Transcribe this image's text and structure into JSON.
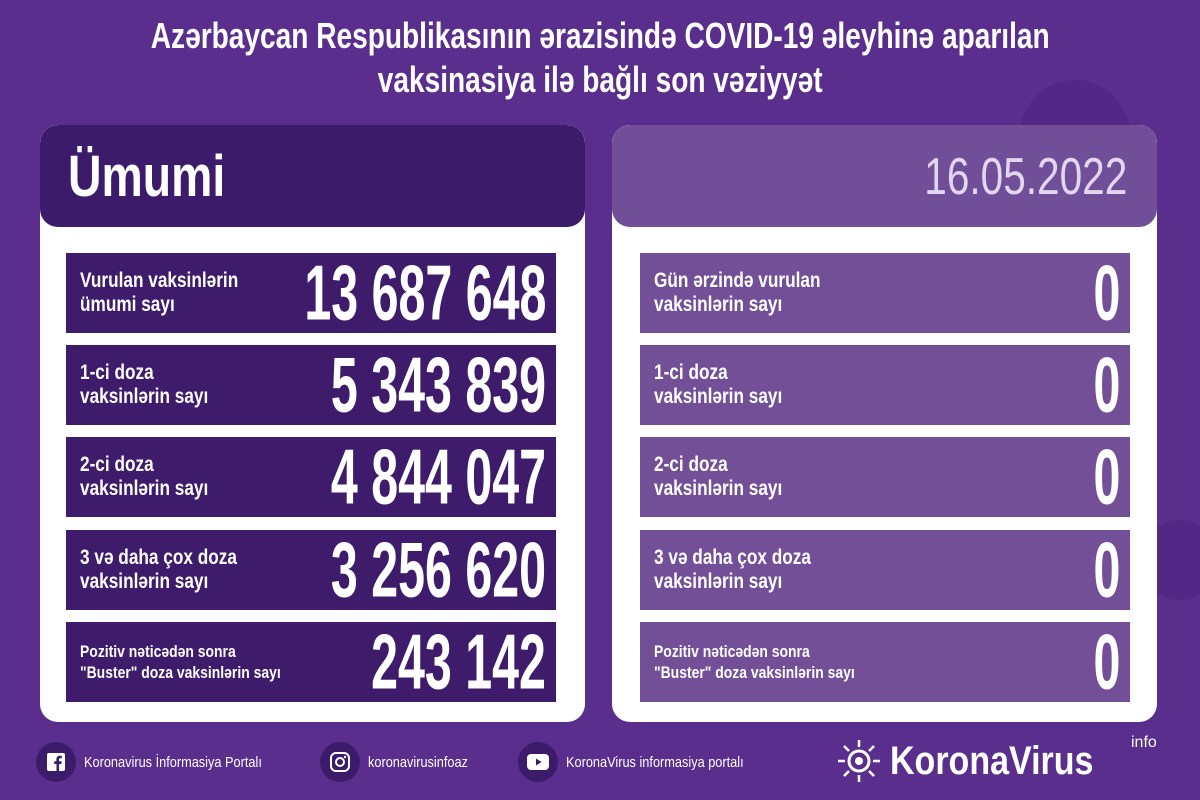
{
  "title": {
    "line1": "Azərbaycan Respublikasının ərazisində COVID-19 əleyhinə aparılan",
    "line2": "vaksinasiya ilə bağlı son vəziyyət"
  },
  "colors": {
    "background": "#5a2e8c",
    "left_header": "#3c1c6a",
    "left_rows": "#3e1c6b",
    "right_header": "#714e98",
    "right_rows": "#734f98"
  },
  "left": {
    "header": "Ümumi",
    "rows": [
      {
        "label1": "Vurulan vaksinlərin",
        "label2": "ümumi sayı",
        "value": "13 687 648"
      },
      {
        "label1": "1-ci doza",
        "label2": "vaksinlərin sayı",
        "value": "5 343 839"
      },
      {
        "label1": "2-ci doza",
        "label2": "vaksinlərin sayı",
        "value": "4 844 047"
      },
      {
        "label1": "3 və daha çox doza",
        "label2": "vaksinlərin sayı",
        "value": "3 256 620"
      },
      {
        "label1": "Pozitiv nəticədən sonra",
        "label2": "\"Buster\" doza vaksinlərin sayı",
        "value": "243 142"
      }
    ]
  },
  "right": {
    "header": "16.05.2022",
    "rows": [
      {
        "label1": "Gün ərzində vurulan",
        "label2": "vaksinlərin sayı",
        "value": "0"
      },
      {
        "label1": "1-ci doza",
        "label2": "vaksinlərin sayı",
        "value": "0"
      },
      {
        "label1": "2-ci doza",
        "label2": "vaksinlərin sayı",
        "value": "0"
      },
      {
        "label1": "3 və daha çox doza",
        "label2": "vaksinlərin sayı",
        "value": "0"
      },
      {
        "label1": "Pozitiv nəticədən sonra",
        "label2": "\"Buster\" doza vaksinlərin sayı",
        "value": "0"
      }
    ]
  },
  "footer": {
    "facebook": {
      "icon": "facebook-icon",
      "text": "Koronavirus İnformasiya Portalı"
    },
    "instagram": {
      "icon": "instagram-icon",
      "text": "koronavirusinfoaz"
    },
    "youtube": {
      "icon": "youtube-icon",
      "text": "KoronaVirus informasiya portalı"
    },
    "brand": {
      "name": "KoronaVirus",
      "sup": "info"
    }
  }
}
